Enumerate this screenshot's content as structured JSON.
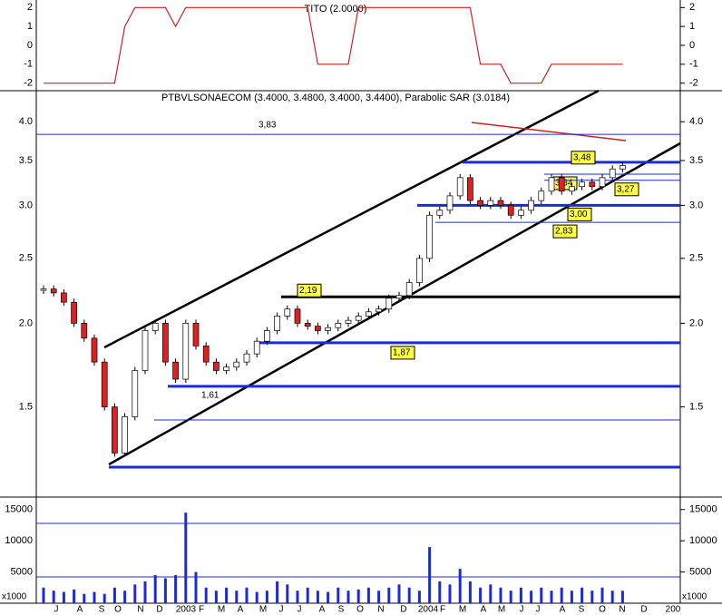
{
  "chart_data": [
    {
      "type": "line",
      "title": "TITO (2.0000)",
      "color": "#d42020",
      "values": [
        -2,
        -2,
        -2,
        -2,
        -2,
        -2,
        -2,
        -2,
        1,
        2,
        2,
        2,
        2,
        1,
        2,
        2,
        2,
        2,
        2,
        2,
        2,
        2,
        2,
        2,
        2,
        2,
        2,
        -1,
        -1,
        -1,
        -1,
        2,
        2,
        2,
        2,
        2,
        2,
        2,
        2,
        2,
        2,
        2,
        2,
        -1,
        -1,
        -1,
        -2,
        -2,
        -2,
        -2,
        -1,
        -1,
        -1,
        -1,
        -1,
        -1,
        -1,
        -1
      ],
      "ylim": [
        -2.4,
        2.4
      ],
      "yticks": [
        2,
        1,
        0,
        -1,
        -2
      ]
    },
    {
      "type": "candlestick",
      "title": "PTBVLSONAECOM (3.4000, 3.4800, 3.4000, 3.4400), Parabolic SAR (3.0184)",
      "values": [
        2.25,
        2.22,
        2.15,
        2.0,
        1.9,
        1.75,
        1.5,
        1.28,
        1.45,
        1.7,
        1.95,
        2.0,
        1.75,
        1.65,
        2.0,
        1.85,
        1.75,
        1.7,
        1.72,
        1.75,
        1.8,
        1.88,
        1.95,
        2.05,
        2.1,
        2.0,
        1.98,
        1.95,
        1.97,
        2.0,
        2.02,
        2.05,
        2.08,
        2.1,
        2.18,
        2.2,
        2.3,
        2.5,
        2.9,
        2.95,
        3.1,
        3.3,
        3.05,
        3.0,
        3.05,
        3.0,
        2.9,
        2.95,
        3.05,
        3.15,
        3.3,
        3.15,
        3.2,
        3.25,
        3.2,
        3.3,
        3.4,
        3.44
      ],
      "up_color": "#ffffff",
      "down_color": "#e02020",
      "log_scale": true,
      "ylim": [
        1.1,
        4.45
      ],
      "yticks": [
        1.5,
        {
          "value": 2,
          "label": "2.0"
        },
        2.5,
        {
          "value": 3,
          "label": "3.0"
        },
        3.5,
        {
          "value": 4,
          "label": "4.0"
        }
      ],
      "annotations": [
        {
          "value": 3.83,
          "label": "3,83"
        },
        {
          "value": 3.48,
          "label": "3,48"
        },
        {
          "value": 3.34,
          "label": "3,34"
        },
        {
          "value": 3.27,
          "label": "3,27"
        },
        {
          "value": 3.0,
          "label": "3,00"
        },
        {
          "value": 2.83,
          "label": "2,83"
        },
        {
          "value": 2.19,
          "label": "2,19"
        },
        {
          "value": 1.87,
          "label": "1,87"
        },
        {
          "value": 1.61,
          "label": "1,61"
        }
      ]
    },
    {
      "type": "bar",
      "color": "#1c2bd8",
      "unit_label": "x1000",
      "values": [
        2500,
        2000,
        1800,
        2200,
        1500,
        1800,
        1500,
        2500,
        2000,
        3000,
        3500,
        4500,
        4000,
        4500,
        14500,
        5000,
        2500,
        2000,
        2500,
        2000,
        2500,
        1800,
        2000,
        3500,
        3000,
        2000,
        2500,
        2000,
        1800,
        2500,
        2000,
        2200,
        2500,
        2000,
        2500,
        3000,
        2500,
        2000,
        9000,
        3500,
        3000,
        5500,
        3500,
        2500,
        3000,
        2500,
        2000,
        2500,
        2000,
        2500,
        2000,
        2500,
        2000,
        2500,
        2000,
        2500,
        2000,
        2000
      ],
      "ylim": [
        0,
        17000
      ],
      "yticks": [
        5000,
        10000,
        15000
      ],
      "x_labels": [
        "J",
        "A",
        "S",
        "O",
        "N",
        "D",
        "2003",
        "F",
        "M",
        "A",
        "M",
        "J",
        "J",
        "A",
        "S",
        "O",
        "N",
        "D",
        "2004",
        "F",
        "M",
        "A",
        "M",
        "J",
        "J",
        "A",
        "S",
        "O",
        "N",
        "D",
        "200"
      ]
    }
  ]
}
